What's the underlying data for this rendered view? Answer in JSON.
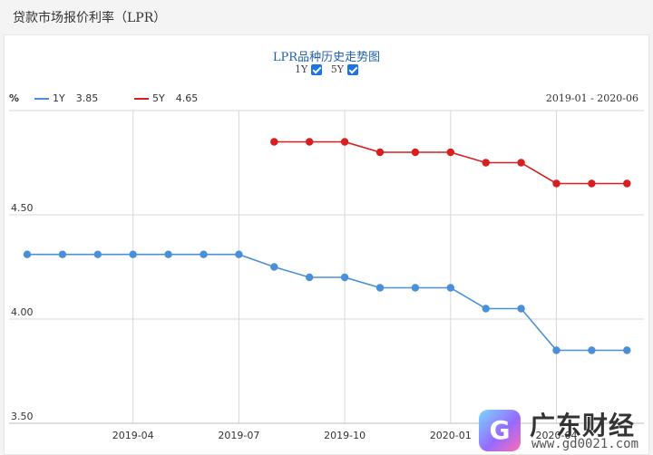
{
  "page": {
    "header_title": "贷款市场报价利率（LPR）"
  },
  "controls": {
    "toggles": [
      {
        "label": "1Y",
        "checked": true
      },
      {
        "label": "5Y",
        "checked": true
      }
    ]
  },
  "legend": {
    "unit": "%",
    "items": [
      {
        "label": "1Y",
        "value": "3.85",
        "color": "#4a90d9"
      },
      {
        "label": "5Y",
        "value": "4.65",
        "color": "#d81e1e"
      }
    ],
    "range": "2019-01 - 2020-06"
  },
  "watermark": {
    "logo_glyph": "G",
    "text": "广东财经",
    "url": "www.gd0021.com"
  },
  "chart_data": {
    "type": "line",
    "title": "LPR品种历史走势图",
    "xlabel": "",
    "ylabel": "%",
    "x": [
      "2019-01",
      "2019-02",
      "2019-03",
      "2019-04",
      "2019-05",
      "2019-06",
      "2019-07",
      "2019-08",
      "2019-09",
      "2019-10",
      "2019-11",
      "2019-12",
      "2020-01",
      "2020-02",
      "2020-03",
      "2020-04",
      "2020-05",
      "2020-06"
    ],
    "x_ticks": [
      "2019-04",
      "2019-07",
      "2019-10",
      "2020-01",
      "2020-04"
    ],
    "y_ticks": [
      "4.50",
      "4.00",
      "3.50"
    ],
    "ylim": [
      3.5,
      5.0
    ],
    "grid": true,
    "legend_position": "top-left",
    "series": [
      {
        "name": "1Y",
        "color": "#4a90d9",
        "values": [
          4.31,
          4.31,
          4.31,
          4.31,
          4.31,
          4.31,
          4.31,
          4.25,
          4.2,
          4.2,
          4.15,
          4.15,
          4.15,
          4.05,
          4.05,
          3.85,
          3.85,
          3.85
        ]
      },
      {
        "name": "5Y",
        "color": "#d81e1e",
        "values": [
          null,
          null,
          null,
          null,
          null,
          null,
          null,
          4.85,
          4.85,
          4.85,
          4.8,
          4.8,
          4.8,
          4.75,
          4.75,
          4.65,
          4.65,
          4.65
        ]
      }
    ]
  }
}
